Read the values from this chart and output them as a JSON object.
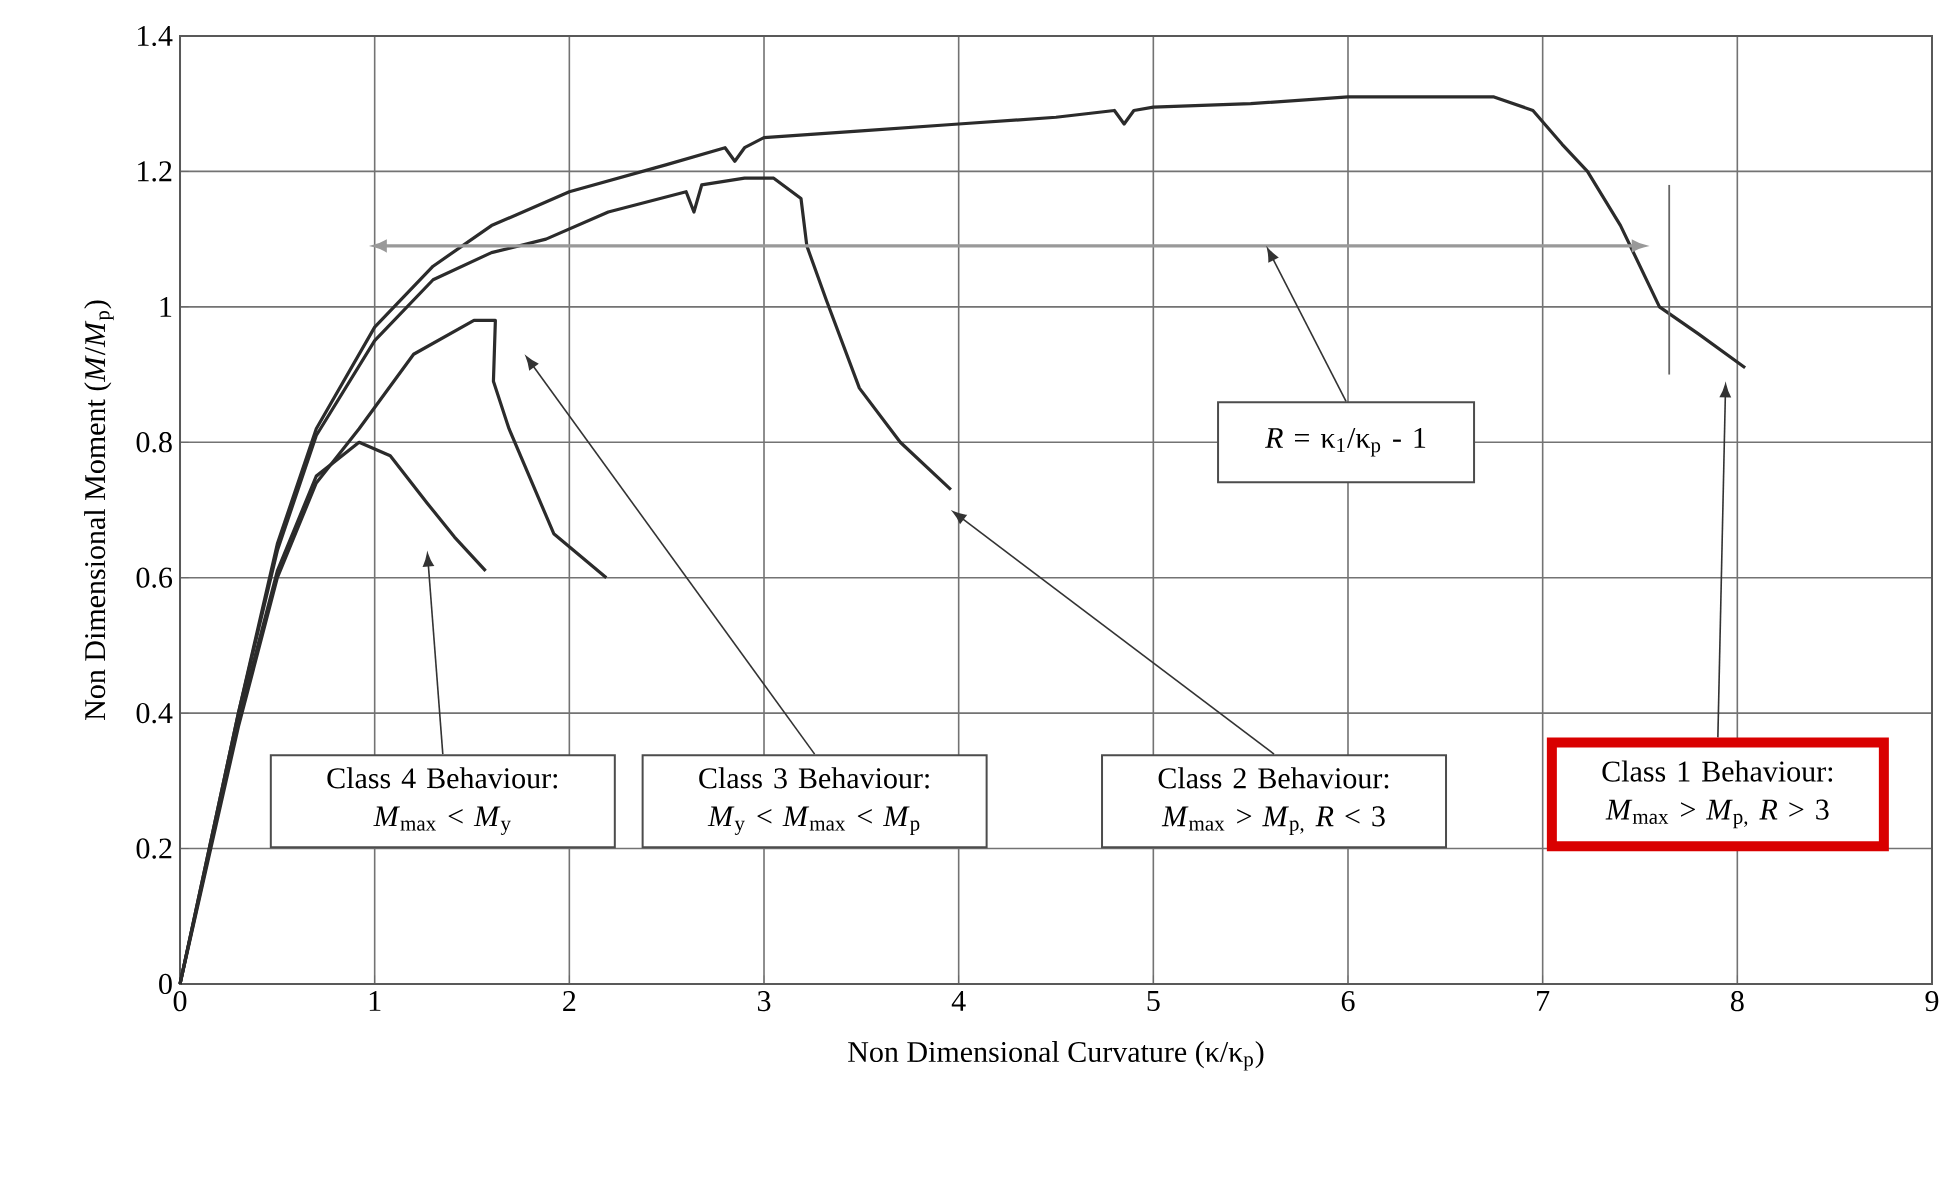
{
  "chart_data": {
    "type": "line",
    "xlabel": "Non Dimensional Curvature (κ/κ$_{p}$)",
    "ylabel": "Non Dimensional Moment (*M*/*M*$_{p}$)",
    "xlim": [
      0,
      9
    ],
    "ylim": [
      0,
      1.4
    ],
    "xticks": [
      0,
      1,
      2,
      3,
      4,
      5,
      6,
      7,
      8,
      9
    ],
    "yticks": [
      0,
      0.2,
      0.4,
      0.6,
      0.8,
      1,
      1.2,
      1.4
    ],
    "grid": true,
    "marker": "none",
    "line_style": "solid",
    "series": [
      {
        "color": "#2b2b2b",
        "x": [
          0,
          0.3,
          0.5,
          0.7,
          1.0,
          1.3,
          1.6,
          2.0,
          2.5,
          2.8,
          2.85,
          2.9,
          3.0,
          3.5,
          4.0,
          4.5,
          4.8,
          4.85,
          4.9,
          5.0,
          5.5,
          6.0,
          6.4,
          6.75,
          6.95,
          7.1,
          7.23,
          7.4,
          7.6,
          7.8,
          8.04
        ],
        "values": [
          0,
          0.4,
          0.65,
          0.82,
          0.97,
          1.06,
          1.12,
          1.17,
          1.21,
          1.235,
          1.215,
          1.235,
          1.25,
          1.26,
          1.27,
          1.28,
          1.29,
          1.27,
          1.29,
          1.295,
          1.3,
          1.31,
          1.31,
          1.31,
          1.29,
          1.24,
          1.2,
          1.12,
          1.0,
          0.96,
          0.91
        ]
      },
      {
        "color": "#2b2b2b",
        "x": [
          0,
          0.3,
          0.5,
          0.7,
          1.0,
          1.3,
          1.6,
          1.88,
          2.2,
          2.6,
          2.64,
          2.68,
          2.9,
          3.05,
          3.19,
          3.22,
          3.32,
          3.49,
          3.7,
          3.96
        ],
        "values": [
          0,
          0.4,
          0.64,
          0.81,
          0.95,
          1.04,
          1.08,
          1.1,
          1.14,
          1.17,
          1.14,
          1.18,
          1.19,
          1.19,
          1.16,
          1.09,
          1.01,
          0.88,
          0.8,
          0.73
        ]
      },
      {
        "color": "#2b2b2b",
        "x": [
          0,
          0.3,
          0.5,
          0.7,
          0.92,
          1.2,
          1.51,
          1.62,
          1.61,
          1.69,
          1.92,
          2.19
        ],
        "values": [
          0,
          0.38,
          0.6,
          0.74,
          0.82,
          0.93,
          0.98,
          0.98,
          0.89,
          0.82,
          0.665,
          0.6
        ]
      },
      {
        "color": "#2b2b2b",
        "x": [
          0,
          0.3,
          0.5,
          0.7,
          0.92,
          1.08,
          1.27,
          1.41,
          1.57
        ],
        "values": [
          0,
          0.39,
          0.61,
          0.75,
          0.8,
          0.78,
          0.71,
          0.66,
          0.61
        ]
      }
    ],
    "annotations": [
      "Class 4 Behaviour: *M*$_{max}$ < *M*$_{y}$",
      "Class 3 Behaviour: *M*$_{y}$ < *M*$_{max}$ < *M*$_{p}$",
      "Class 2 Behaviour: *M*$_{max}$ > *M*$_{p,}$ *R* < 3",
      "Class 1 Behaviour: *M*$_{max}$ > *M*$_{p,}$ *R* > 3",
      "*R* = κ$_{1}$/κ$_{p}$ - 1"
    ]
  }
}
